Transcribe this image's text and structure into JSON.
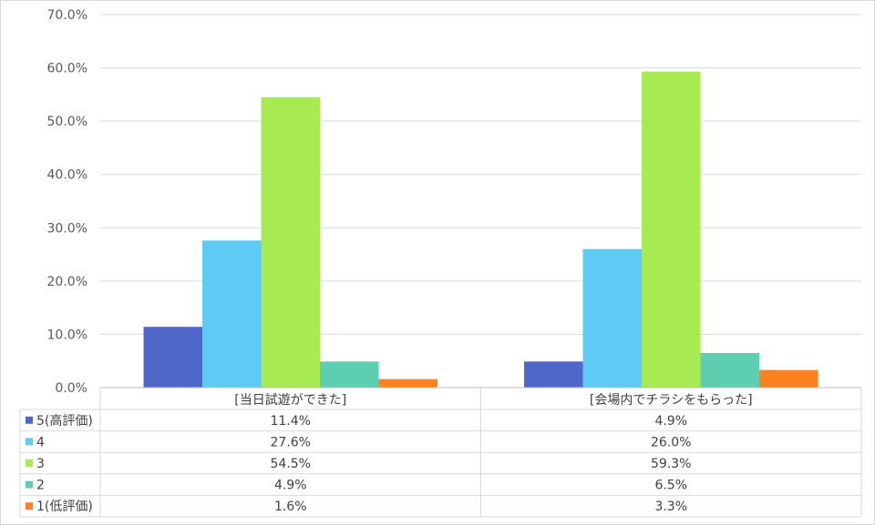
{
  "chart_data": {
    "type": "bar",
    "categories": [
      "[当日試遊ができた]",
      "[会場内でチラシをもらった]"
    ],
    "series": [
      {
        "name": "5(高評価)",
        "color": "#4e67c8",
        "values": [
          11.4,
          4.9
        ],
        "labels": [
          "11.4%",
          "4.9%"
        ]
      },
      {
        "name": "4",
        "color": "#5ecbf4",
        "values": [
          27.6,
          26.0
        ],
        "labels": [
          "27.6%",
          "26.0%"
        ]
      },
      {
        "name": "3",
        "color": "#a7ea52",
        "values": [
          54.5,
          59.3
        ],
        "labels": [
          "54.5%",
          "59.3%"
        ]
      },
      {
        "name": "2",
        "color": "#5dceaf",
        "values": [
          4.9,
          6.5
        ],
        "labels": [
          "4.9%",
          "6.5%"
        ]
      },
      {
        "name": "1(低評価)",
        "color": "#ff8021",
        "values": [
          1.6,
          3.3
        ],
        "labels": [
          "1.6%",
          "3.3%"
        ]
      }
    ],
    "ylim": [
      0,
      70
    ],
    "yticks": [
      "0.0%",
      "10.0%",
      "20.0%",
      "30.0%",
      "40.0%",
      "50.0%",
      "60.0%",
      "70.0%"
    ],
    "grid": true,
    "legend": "data-table"
  }
}
